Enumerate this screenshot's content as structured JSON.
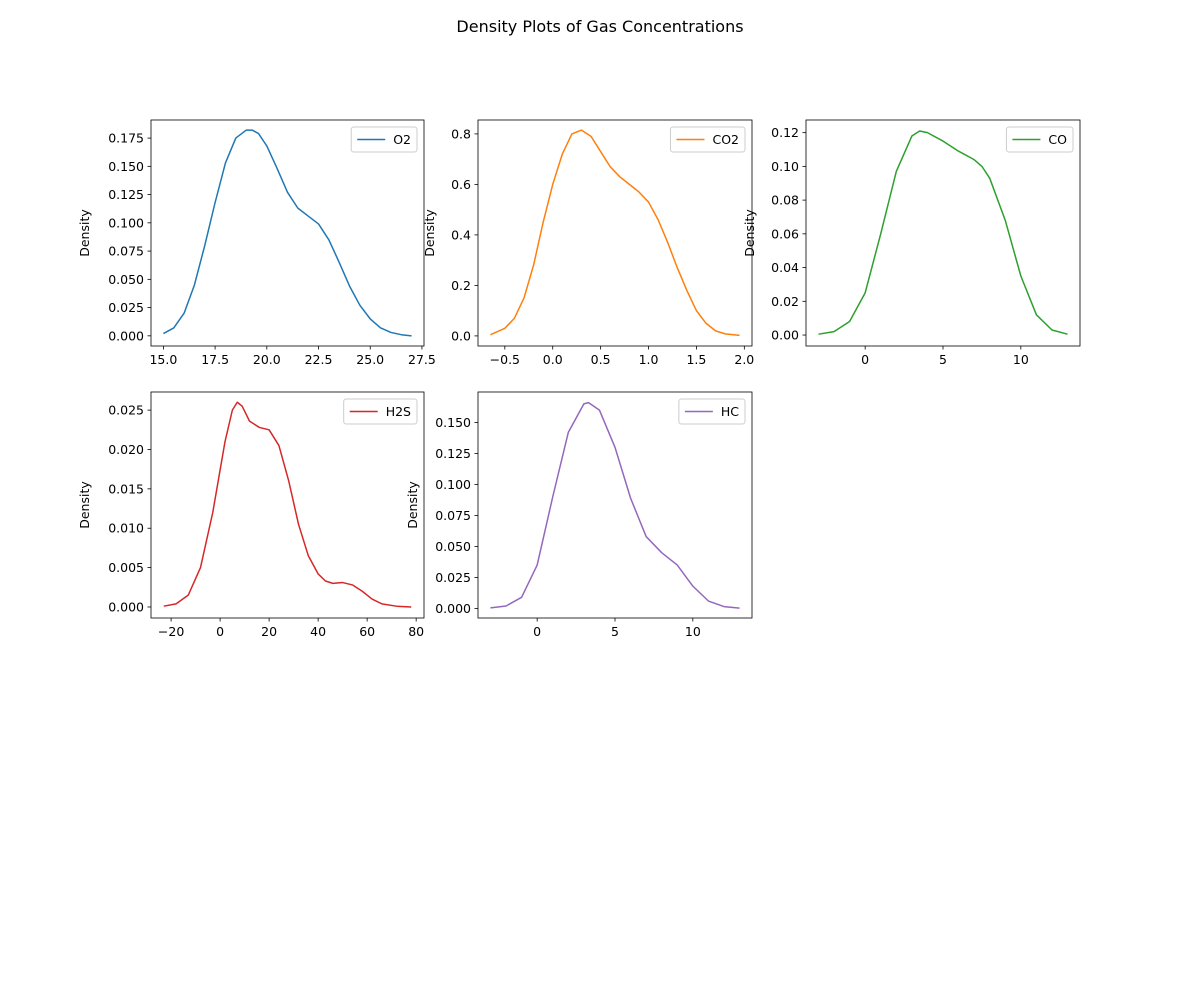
{
  "figure": {
    "title": "Density Plots of Gas Concentrations"
  },
  "chart_data": [
    {
      "type": "line",
      "series": [
        {
          "name": "O2",
          "color": "#1f77b4",
          "x": [
            15.0,
            15.5,
            16.0,
            16.5,
            17.0,
            17.5,
            18.0,
            18.5,
            19.0,
            19.3,
            19.6,
            20.0,
            20.5,
            21.0,
            21.5,
            22.0,
            22.5,
            23.0,
            23.5,
            24.0,
            24.5,
            25.0,
            25.5,
            26.0,
            26.5,
            27.0
          ],
          "y": [
            0.002,
            0.007,
            0.02,
            0.045,
            0.08,
            0.118,
            0.153,
            0.175,
            0.182,
            0.182,
            0.179,
            0.168,
            0.148,
            0.127,
            0.113,
            0.106,
            0.099,
            0.085,
            0.065,
            0.044,
            0.027,
            0.015,
            0.007,
            0.003,
            0.001,
            0.0
          ]
        }
      ],
      "xticks": [
        15.0,
        17.5,
        20.0,
        22.5,
        25.0,
        27.5
      ],
      "xtick_labels": [
        "15.0",
        "17.5",
        "20.0",
        "22.5",
        "25.0",
        "27.5"
      ],
      "yticks": [
        0.0,
        0.025,
        0.05,
        0.075,
        0.1,
        0.125,
        0.15,
        0.175
      ],
      "ytick_labels": [
        "0.000",
        "0.025",
        "0.050",
        "0.075",
        "0.100",
        "0.125",
        "0.150",
        "0.175"
      ],
      "xlim": [
        14.4,
        27.6
      ],
      "ylim": [
        -0.009,
        0.191
      ],
      "xlabel": "",
      "ylabel": "Density",
      "legend": "upper-right"
    },
    {
      "type": "line",
      "series": [
        {
          "name": "CO2",
          "color": "#ff7f0e",
          "x": [
            -0.65,
            -0.5,
            -0.4,
            -0.3,
            -0.2,
            -0.1,
            0.0,
            0.1,
            0.2,
            0.3,
            0.4,
            0.5,
            0.6,
            0.7,
            0.8,
            0.9,
            1.0,
            1.1,
            1.2,
            1.3,
            1.4,
            1.5,
            1.6,
            1.7,
            1.8,
            1.95
          ],
          "y": [
            0.005,
            0.03,
            0.07,
            0.15,
            0.28,
            0.45,
            0.6,
            0.72,
            0.8,
            0.815,
            0.79,
            0.73,
            0.67,
            0.63,
            0.6,
            0.57,
            0.53,
            0.46,
            0.37,
            0.27,
            0.18,
            0.1,
            0.05,
            0.02,
            0.008,
            0.002
          ]
        }
      ],
      "xticks": [
        -0.5,
        0.0,
        0.5,
        1.0,
        1.5,
        2.0
      ],
      "xtick_labels": [
        "−0.5",
        "0.0",
        "0.5",
        "1.0",
        "1.5",
        "2.0"
      ],
      "yticks": [
        0.0,
        0.2,
        0.4,
        0.6,
        0.8
      ],
      "ytick_labels": [
        "0.0",
        "0.2",
        "0.4",
        "0.6",
        "0.8"
      ],
      "xlim": [
        -0.78,
        2.08
      ],
      "ylim": [
        -0.04,
        0.855
      ],
      "xlabel": "",
      "ylabel": "Density",
      "legend": "upper-right"
    },
    {
      "type": "line",
      "series": [
        {
          "name": "CO",
          "color": "#2ca02c",
          "x": [
            -3.0,
            -2.0,
            -1.0,
            0.0,
            1.0,
            2.0,
            3.0,
            3.5,
            4.0,
            5.0,
            6.0,
            7.0,
            7.5,
            8.0,
            9.0,
            10.0,
            11.0,
            12.0,
            13.0
          ],
          "y": [
            0.0005,
            0.002,
            0.008,
            0.025,
            0.06,
            0.097,
            0.118,
            0.121,
            0.12,
            0.115,
            0.109,
            0.104,
            0.1,
            0.093,
            0.068,
            0.035,
            0.012,
            0.003,
            0.0005
          ]
        }
      ],
      "xticks": [
        0,
        5,
        10
      ],
      "xtick_labels": [
        "0",
        "5",
        "10"
      ],
      "yticks": [
        0.0,
        0.02,
        0.04,
        0.06,
        0.08,
        0.1,
        0.12
      ],
      "ytick_labels": [
        "0.00",
        "0.02",
        "0.04",
        "0.06",
        "0.08",
        "0.10",
        "0.12"
      ],
      "xlim": [
        -3.8,
        13.8
      ],
      "ylim": [
        -0.0065,
        0.1275
      ],
      "xlabel": "",
      "ylabel": "Density",
      "legend": "upper-right"
    },
    {
      "type": "line",
      "series": [
        {
          "name": "H2S",
          "color": "#d62728",
          "x": [
            -23,
            -18,
            -13,
            -8,
            -3,
            2,
            5,
            7,
            9,
            12,
            16,
            20,
            24,
            28,
            32,
            36,
            40,
            43,
            46,
            50,
            54,
            58,
            62,
            66,
            72,
            78
          ],
          "y": [
            0.0001,
            0.0004,
            0.0015,
            0.005,
            0.012,
            0.021,
            0.025,
            0.026,
            0.0255,
            0.0236,
            0.0228,
            0.0225,
            0.0205,
            0.016,
            0.0105,
            0.0065,
            0.0042,
            0.0033,
            0.003,
            0.0031,
            0.0028,
            0.002,
            0.001,
            0.0004,
            0.0001,
            0.0
          ]
        }
      ],
      "xticks": [
        -20,
        0,
        20,
        40,
        60,
        80
      ],
      "xtick_labels": [
        "−20",
        "0",
        "20",
        "40",
        "60",
        "80"
      ],
      "yticks": [
        0.0,
        0.005,
        0.01,
        0.015,
        0.02,
        0.025
      ],
      "ytick_labels": [
        "0.000",
        "0.005",
        "0.010",
        "0.015",
        "0.020",
        "0.025"
      ],
      "xlim": [
        -28.2,
        83.2
      ],
      "ylim": [
        -0.0014,
        0.0273
      ],
      "xlabel": "",
      "ylabel": "Density",
      "legend": "upper-right"
    },
    {
      "type": "line",
      "series": [
        {
          "name": "HC",
          "color": "#9467bd",
          "x": [
            -3.0,
            -2.0,
            -1.0,
            0.0,
            1.0,
            2.0,
            3.0,
            3.3,
            4.0,
            5.0,
            6.0,
            7.0,
            8.0,
            9.0,
            10.0,
            11.0,
            12.0,
            13.0
          ],
          "y": [
            0.0005,
            0.002,
            0.009,
            0.035,
            0.09,
            0.142,
            0.165,
            0.166,
            0.16,
            0.13,
            0.089,
            0.058,
            0.045,
            0.035,
            0.018,
            0.006,
            0.0015,
            0.0003
          ]
        }
      ],
      "xticks": [
        0,
        5,
        10
      ],
      "xtick_labels": [
        "0",
        "5",
        "10"
      ],
      "yticks": [
        0.0,
        0.025,
        0.05,
        0.075,
        0.1,
        0.125,
        0.15
      ],
      "ytick_labels": [
        "0.000",
        "0.025",
        "0.050",
        "0.075",
        "0.100",
        "0.125",
        "0.150"
      ],
      "xlim": [
        -3.8,
        13.8
      ],
      "ylim": [
        -0.0077,
        0.1746
      ],
      "xlabel": "",
      "ylabel": "Density",
      "legend": "upper-right"
    }
  ]
}
